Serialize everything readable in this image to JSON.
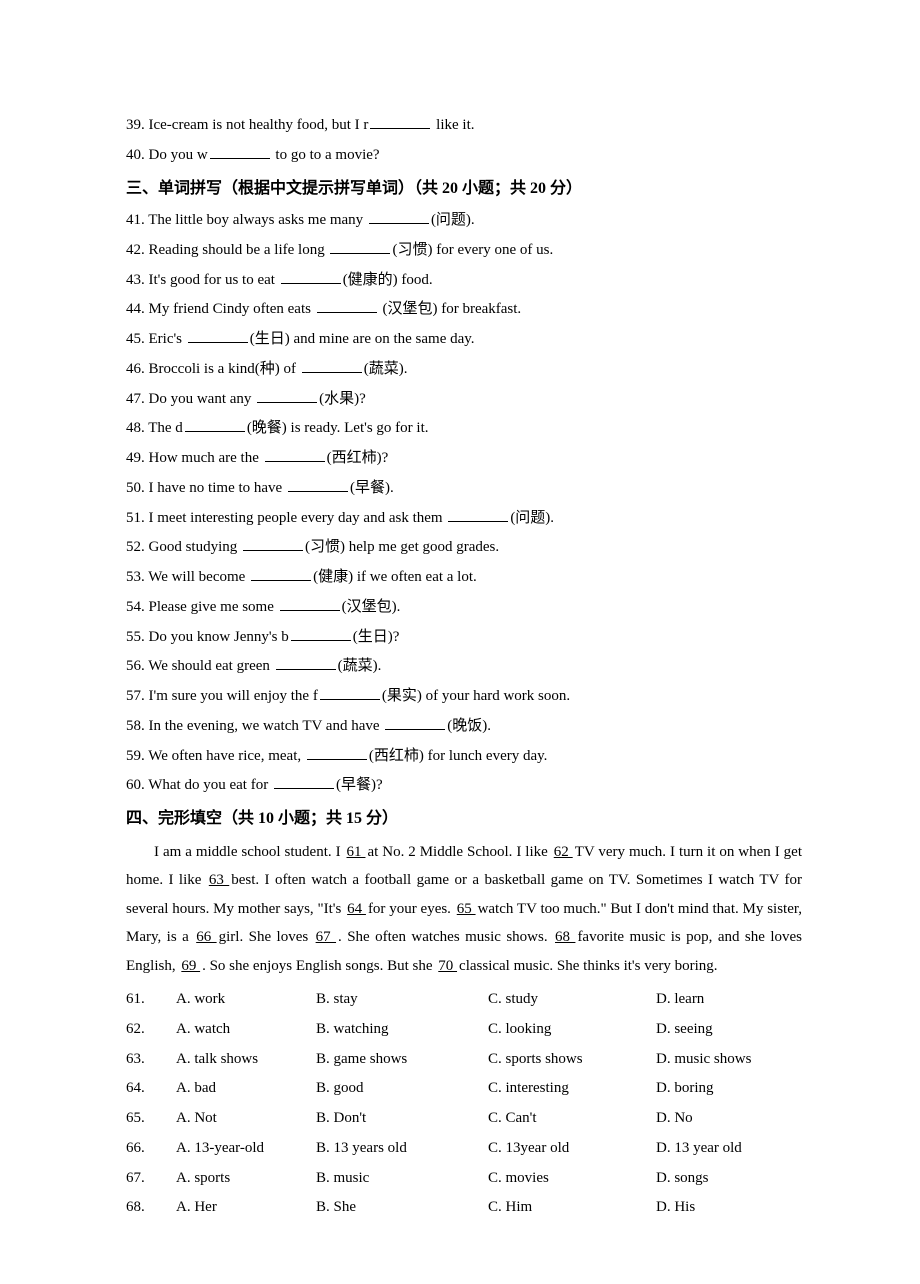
{
  "pre_questions": [
    {
      "num": "39",
      "before": "Ice-cream is not healthy food, but I r",
      "after": " like it."
    },
    {
      "num": "40",
      "before": "Do you w",
      "after": " to go to a movie?"
    }
  ],
  "section3": {
    "title": "三、单词拼写（根据中文提示拼写单词）（共 20 小题；共 20 分）",
    "questions": [
      {
        "num": "41",
        "before": "The little boy always asks me many ",
        "after": "(问题)."
      },
      {
        "num": "42",
        "before": "Reading should be a life long ",
        "after": "(习惯) for every one of us."
      },
      {
        "num": "43",
        "before": "It's good for us to eat ",
        "after": "(健康的) food."
      },
      {
        "num": "44",
        "before": "My friend Cindy often eats ",
        "after": " (汉堡包) for breakfast."
      },
      {
        "num": "45",
        "before": "Eric's ",
        "after": "(生日) and mine are on the same day."
      },
      {
        "num": "46",
        "before": "Broccoli is a kind(种) of ",
        "after": "(蔬菜)."
      },
      {
        "num": "47",
        "before": "Do you want any ",
        "after": "(水果)?"
      },
      {
        "num": "48",
        "before": "The d",
        "after": "(晚餐) is ready. Let's go for it."
      },
      {
        "num": "49",
        "before": "How much are the ",
        "after": "(西红柿)?"
      },
      {
        "num": "50",
        "before": "I have no time to have ",
        "after": "(早餐)."
      },
      {
        "num": "51",
        "before": "I meet interesting people every day and ask them ",
        "after": "(问题)."
      },
      {
        "num": "52",
        "before": "Good studying ",
        "after": "(习惯) help me get good grades."
      },
      {
        "num": "53",
        "before": "We will become ",
        "after": "(健康) if we often eat a lot."
      },
      {
        "num": "54",
        "before": "Please give me some ",
        "after": "(汉堡包)."
      },
      {
        "num": "55",
        "before": "Do you know Jenny's b",
        "after": "(生日)?"
      },
      {
        "num": "56",
        "before": "We should eat green ",
        "after": "(蔬菜)."
      },
      {
        "num": "57",
        "before": "I'm sure you will enjoy the f",
        "after": "(果实) of your hard work soon."
      },
      {
        "num": "58",
        "before": "In the evening, we watch TV and have ",
        "after": "(晚饭)."
      },
      {
        "num": "59",
        "before": "We often have rice, meat, ",
        "after": "(西红柿) for lunch every day."
      },
      {
        "num": "60",
        "before": "What do you eat for ",
        "after": "(早餐)?"
      }
    ]
  },
  "section4": {
    "title": "四、完形填空（共 10 小题；共 15 分）",
    "passage_parts": [
      "I am a middle school student. I ",
      "   61   ",
      " at No. 2 Middle School. I like ",
      "   62   ",
      " TV very much. I turn it on when I get home. I like ",
      "   63   ",
      " best. I often watch a football game or a basketball game on TV. Sometimes I watch TV for several hours. My mother says, \"It's ",
      "   64   ",
      " for your eyes. ",
      "   65   ",
      " watch TV too much.\" But I don't mind that. My sister, Mary, is a ",
      "   66   ",
      " girl. She loves ",
      "   67   ",
      ". She often watches music shows. ",
      "   68   ",
      " favorite music is pop, and she loves English, ",
      "   69   ",
      ". So she enjoys English songs. But she ",
      "   70   ",
      " classical music. She thinks it's very boring."
    ],
    "options": [
      {
        "num": "61",
        "a": "A. work",
        "b": "B. stay",
        "c": "C. study",
        "d": "D. learn"
      },
      {
        "num": "62",
        "a": "A. watch",
        "b": "B. watching",
        "c": "C. looking",
        "d": "D. seeing"
      },
      {
        "num": "63",
        "a": "A. talk shows",
        "b": "B. game shows",
        "c": "C. sports shows",
        "d": "D. music shows"
      },
      {
        "num": "64",
        "a": "A. bad",
        "b": "B. good",
        "c": "C. interesting",
        "d": "D. boring"
      },
      {
        "num": "65",
        "a": "A. Not",
        "b": "B. Don't",
        "c": "C. Can't",
        "d": "D. No"
      },
      {
        "num": "66",
        "a": "A. 13-year-old",
        "b": "B. 13 years old",
        "c": "C. 13year old",
        "d": "D. 13 year old"
      },
      {
        "num": "67",
        "a": "A. sports",
        "b": "B. music",
        "c": "C. movies",
        "d": "D. songs"
      },
      {
        "num": "68",
        "a": "A. Her",
        "b": "B. She",
        "c": "C. Him",
        "d": "D. His"
      }
    ]
  }
}
